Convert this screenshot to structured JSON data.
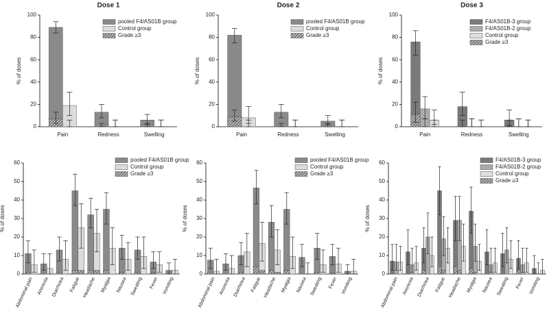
{
  "chart_data": [
    {
      "type": "bar",
      "title": "Dose 1",
      "ylabel": "% of doses",
      "categories": [
        "Pain",
        "Redness",
        "Swelling"
      ],
      "ylim": [
        0,
        100
      ],
      "yticks": [
        0,
        20,
        40,
        60,
        80,
        100
      ],
      "hatch_label": "Grade ≥3",
      "series": [
        {
          "name": "pooled F4/AS01B group",
          "color": "#8a8a8a",
          "values": [
            89,
            13,
            6
          ],
          "ci": [
            [
              84,
              94
            ],
            [
              8,
              20
            ],
            [
              2,
              11
            ]
          ],
          "grade3": [
            7,
            0,
            0
          ],
          "grade3_ci": [
            [
              3,
              13
            ],
            [
              0,
              3
            ],
            [
              0,
              3
            ]
          ]
        },
        {
          "name": "Control group",
          "color": "#dcdcdc",
          "values": [
            19,
            0,
            0
          ],
          "ci": [
            [
              10,
              31
            ],
            [
              0,
              6
            ],
            [
              0,
              6
            ]
          ],
          "grade3": [
            0,
            0,
            0
          ],
          "grade3_ci": [
            [
              0,
              6
            ],
            [
              0,
              6
            ],
            [
              0,
              6
            ]
          ]
        }
      ]
    },
    {
      "type": "bar",
      "title": "Dose 2",
      "ylabel": "% of doses",
      "categories": [
        "Pain",
        "Redness",
        "Swelling"
      ],
      "ylim": [
        0,
        100
      ],
      "yticks": [
        0,
        20,
        40,
        60,
        80,
        100
      ],
      "hatch_label": "Grade ≥3",
      "series": [
        {
          "name": "pooled F4/AS01B group",
          "color": "#8a8a8a",
          "values": [
            82,
            13,
            5
          ],
          "ci": [
            [
              75,
              88
            ],
            [
              8,
              20
            ],
            [
              2,
              10
            ]
          ],
          "grade3": [
            9,
            0,
            0
          ],
          "grade3_ci": [
            [
              5,
              15
            ],
            [
              0,
              3
            ],
            [
              0,
              3
            ]
          ]
        },
        {
          "name": "Control group",
          "color": "#dcdcdc",
          "values": [
            8,
            0,
            0
          ],
          "ci": [
            [
              3,
              18
            ],
            [
              0,
              6
            ],
            [
              0,
              6
            ]
          ],
          "grade3": [
            0,
            0,
            0
          ],
          "grade3_ci": [
            [
              0,
              6
            ],
            [
              0,
              6
            ],
            [
              0,
              6
            ]
          ]
        }
      ]
    },
    {
      "type": "bar",
      "title": "Dose 3",
      "ylabel": "% of doses",
      "categories": [
        "Pain",
        "Redness",
        "Swelling"
      ],
      "ylim": [
        0,
        100
      ],
      "yticks": [
        0,
        20,
        40,
        60,
        80,
        100
      ],
      "hatch_label": "Grade ≥3",
      "series": [
        {
          "name": "F4/AS01B-3 group",
          "color": "#7a7a7a",
          "values": [
            76,
            18,
            6
          ],
          "ci": [
            [
              64,
              86
            ],
            [
              10,
              31
            ],
            [
              1,
              15
            ]
          ],
          "grade3": [
            11,
            0,
            0
          ],
          "grade3_ci": [
            [
              4,
              22
            ],
            [
              0,
              6
            ],
            [
              0,
              6
            ]
          ]
        },
        {
          "name": "F4/AS01B-2 group",
          "color": "#ababab",
          "values": [
            16,
            0,
            0
          ],
          "ci": [
            [
              7,
              27
            ],
            [
              0,
              7
            ],
            [
              0,
              7
            ]
          ],
          "grade3": [
            0,
            0,
            0
          ],
          "grade3_ci": [
            [
              0,
              7
            ],
            [
              0,
              7
            ],
            [
              0,
              7
            ]
          ]
        },
        {
          "name": "Control group",
          "color": "#dedede",
          "values": [
            6,
            0,
            0
          ],
          "ci": [
            [
              2,
              15
            ],
            [
              0,
              6
            ],
            [
              0,
              6
            ]
          ],
          "grade3": [
            0,
            0,
            0
          ],
          "grade3_ci": [
            [
              0,
              6
            ],
            [
              0,
              6
            ],
            [
              0,
              6
            ]
          ]
        }
      ]
    },
    {
      "type": "bar",
      "ylabel": "% of doses",
      "categories": [
        "Abdominal pain",
        "Anorexia",
        "Diarrhoea",
        "Fatigue",
        "Headache",
        "Myalgia",
        "Nausea",
        "Sweating",
        "Fever",
        "Vomiting"
      ],
      "ylim": [
        0,
        60
      ],
      "yticks": [
        0,
        10,
        20,
        30,
        40,
        50,
        60
      ],
      "hatch_label": "Grade ≥3",
      "series": [
        {
          "name": "pooled F4/AS01B group",
          "color": "#8a8a8a",
          "values": [
            11,
            5.5,
            13,
            45,
            32,
            35,
            14,
            13,
            6.5,
            2
          ],
          "ci": [
            [
              6,
              18
            ],
            [
              2,
              11
            ],
            [
              7,
              20
            ],
            [
              37,
              54
            ],
            [
              25,
              41
            ],
            [
              27,
              44
            ],
            [
              8,
              21
            ],
            [
              8,
              20
            ],
            [
              3,
              12
            ],
            [
              0,
              6
            ]
          ],
          "grade3": [
            1,
            0,
            1,
            2,
            2,
            2,
            1,
            1,
            0.5,
            0
          ]
        },
        {
          "name": "Control group",
          "color": "#dcdcdc",
          "values": [
            5,
            3,
            8,
            25,
            22,
            14,
            8,
            9.5,
            5,
            2
          ],
          "ci": [
            [
              1,
              13
            ],
            [
              0,
              11
            ],
            [
              2,
              18
            ],
            [
              14,
              38
            ],
            [
              12,
              35
            ],
            [
              5,
              25
            ],
            [
              2,
              17
            ],
            [
              3,
              20
            ],
            [
              1,
              12
            ],
            [
              0,
              8
            ]
          ],
          "grade3": [
            0,
            0,
            0,
            2,
            2,
            0,
            0,
            0,
            0,
            0
          ]
        }
      ]
    },
    {
      "type": "bar",
      "ylabel": "% of doses",
      "categories": [
        "Abdominal pain",
        "Anorexia",
        "Diarrhoea",
        "Fatigue",
        "Headache",
        "Myalgia",
        "Nausea",
        "Sweating",
        "Fever",
        "Vomiting"
      ],
      "ylim": [
        0,
        60
      ],
      "yticks": [
        0,
        10,
        20,
        30,
        40,
        50,
        60
      ],
      "hatch_label": "Grade ≥3",
      "series": [
        {
          "name": "pooled F4/AS01B group",
          "color": "#8a8a8a",
          "values": [
            7.5,
            5.5,
            10,
            46.5,
            28,
            35,
            9,
            14,
            9.5,
            1.5
          ],
          "ci": [
            [
              3,
              14
            ],
            [
              2,
              11
            ],
            [
              5,
              17
            ],
            [
              38,
              56
            ],
            [
              20,
              37
            ],
            [
              27,
              44
            ],
            [
              4,
              16
            ],
            [
              8,
              22
            ],
            [
              5,
              16
            ],
            [
              0,
              5
            ]
          ],
          "grade3": [
            1,
            0,
            1,
            4,
            2,
            2,
            0,
            1,
            0.5,
            0
          ]
        },
        {
          "name": "Control group",
          "color": "#dcdcdc",
          "values": [
            1.5,
            3,
            12,
            16.5,
            13,
            9.5,
            0,
            5,
            5.5,
            1.5
          ],
          "ci": [
            [
              0,
              8
            ],
            [
              0,
              10
            ],
            [
              4,
              22
            ],
            [
              7,
              28
            ],
            [
              5,
              24
            ],
            [
              3,
              20
            ],
            [
              0,
              6
            ],
            [
              1,
              13
            ],
            [
              1,
              14
            ],
            [
              0,
              8
            ]
          ],
          "grade3": [
            0,
            0,
            0,
            2,
            1,
            0,
            0,
            0,
            0,
            0
          ]
        }
      ]
    },
    {
      "type": "bar",
      "ylabel": "% of doses",
      "categories": [
        "Abdominal pain",
        "Anorexia",
        "Diarrhoea",
        "Fatigue",
        "Headache",
        "Myalgia",
        "Nausea",
        "Sweating",
        "Fever",
        "Vomiting"
      ],
      "ylim": [
        0,
        60
      ],
      "yticks": [
        0,
        10,
        20,
        30,
        40,
        50,
        60
      ],
      "hatch_label": "Grade ≥3",
      "series": [
        {
          "name": "F4/AS01B-3 group",
          "color": "#7a7a7a",
          "values": [
            7,
            12,
            14,
            45,
            29,
            34,
            12,
            11,
            8.5,
            3
          ],
          "ci": [
            [
              2,
              16
            ],
            [
              5,
              24
            ],
            [
              6,
              25
            ],
            [
              32,
              58
            ],
            [
              18,
              42
            ],
            [
              22,
              47
            ],
            [
              5,
              24
            ],
            [
              4,
              22
            ],
            [
              3,
              18
            ],
            [
              0,
              10
            ]
          ],
          "grade3": [
            0,
            0,
            2,
            4,
            4,
            3,
            0,
            0,
            2,
            0
          ]
        },
        {
          "name": "F4/AS01B-2 group",
          "color": "#ababab",
          "values": [
            6.5,
            5,
            20,
            19,
            29,
            15,
            5,
            13,
            5,
            0
          ],
          "ci": [
            [
              2,
              16
            ],
            [
              1,
              14
            ],
            [
              11,
              33
            ],
            [
              10,
              31
            ],
            [
              18,
              42
            ],
            [
              7,
              27
            ],
            [
              1,
              14
            ],
            [
              6,
              25
            ],
            [
              1,
              14
            ],
            [
              0,
              6
            ]
          ],
          "grade3": [
            0,
            0,
            0,
            2,
            2,
            1,
            0,
            0,
            0,
            0
          ]
        },
        {
          "name": "Control group",
          "color": "#dedede",
          "values": [
            6.5,
            6,
            10,
            14,
            15,
            7,
            6,
            8,
            6,
            2
          ],
          "ci": [
            [
              2,
              15
            ],
            [
              2,
              15
            ],
            [
              4,
              20
            ],
            [
              6,
              25
            ],
            [
              7,
              27
            ],
            [
              2,
              16
            ],
            [
              1,
              14
            ],
            [
              3,
              18
            ],
            [
              1,
              14
            ],
            [
              0,
              8
            ]
          ],
          "grade3": [
            0,
            0,
            0,
            0,
            0,
            0,
            0,
            0,
            0,
            0
          ]
        }
      ]
    }
  ]
}
